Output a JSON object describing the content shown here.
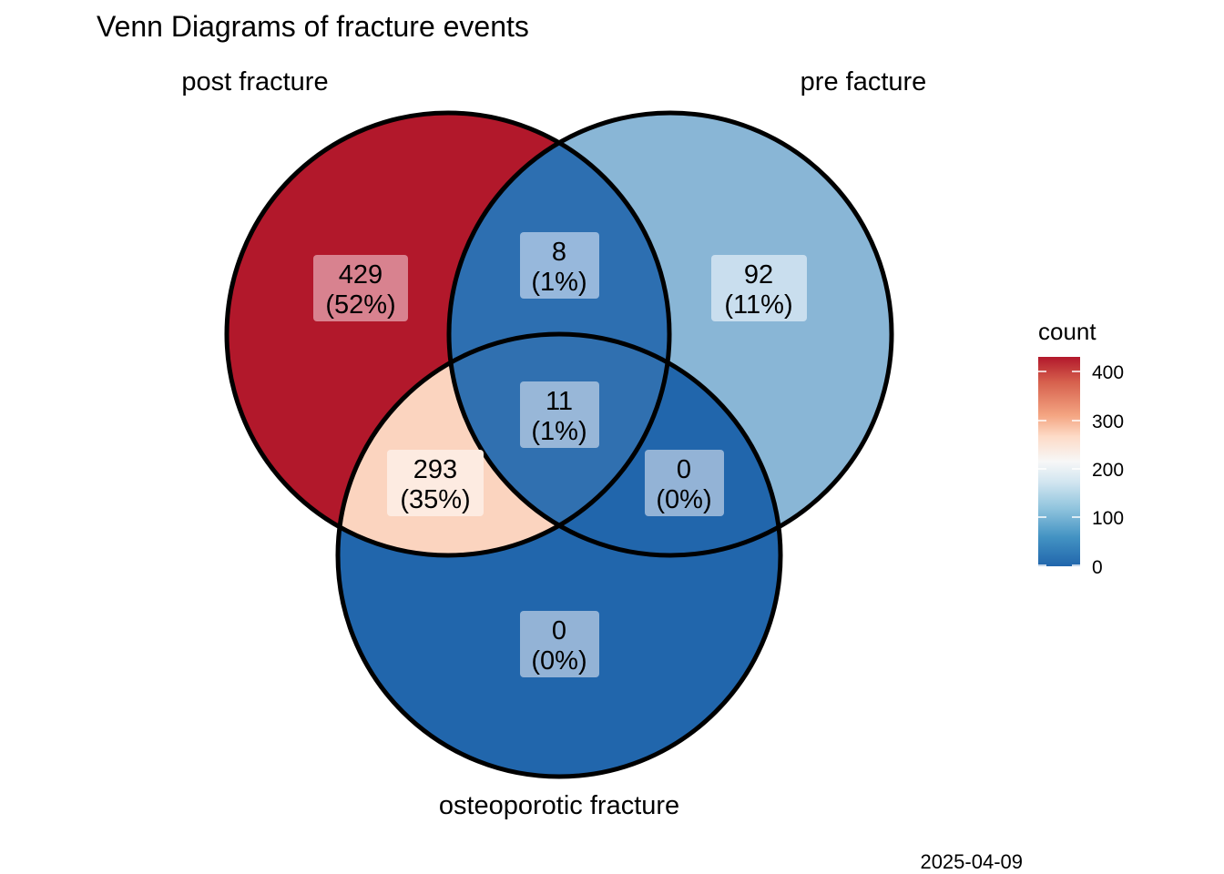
{
  "title": "Venn Diagrams of fracture events",
  "caption": "2025-04-09",
  "sets": {
    "post": "post fracture",
    "pre": "pre facture",
    "osteo": "osteoporotic fracture"
  },
  "regions": {
    "post_only": {
      "count": "429",
      "pct": "(52%)",
      "fill": "#b2182b",
      "box": "#d8828f"
    },
    "pre_only": {
      "count": "92",
      "pct": "(11%)",
      "fill": "#89b6d6",
      "box": "#c9deee"
    },
    "post_pre": {
      "count": "8",
      "pct": "(1%)",
      "fill": "#2d6fb1",
      "box": "#97b8dc"
    },
    "post_osteo": {
      "count": "293",
      "pct": "(35%)",
      "fill": "#fbd4bf",
      "box": "#fdebe1"
    },
    "all_three": {
      "count": "11",
      "pct": "(1%)",
      "fill": "#3070b0",
      "box": "#98b7d8"
    },
    "pre_osteo": {
      "count": "0",
      "pct": "(0%)",
      "fill": "#2166ac",
      "box": "#93b3d6"
    },
    "osteo_only": {
      "count": "0",
      "pct": "(0%)",
      "fill": "#2166ac",
      "box": "#93b3d6"
    }
  },
  "legend": {
    "title": "count",
    "ticks": [
      "400",
      "300",
      "200",
      "100",
      "0"
    ],
    "colors": [
      "#b2182b",
      "#d6604d",
      "#f4a582",
      "#fddbc7",
      "#f7f7f7",
      "#d1e5f0",
      "#92c5de",
      "#4393c3",
      "#2166ac"
    ]
  }
}
